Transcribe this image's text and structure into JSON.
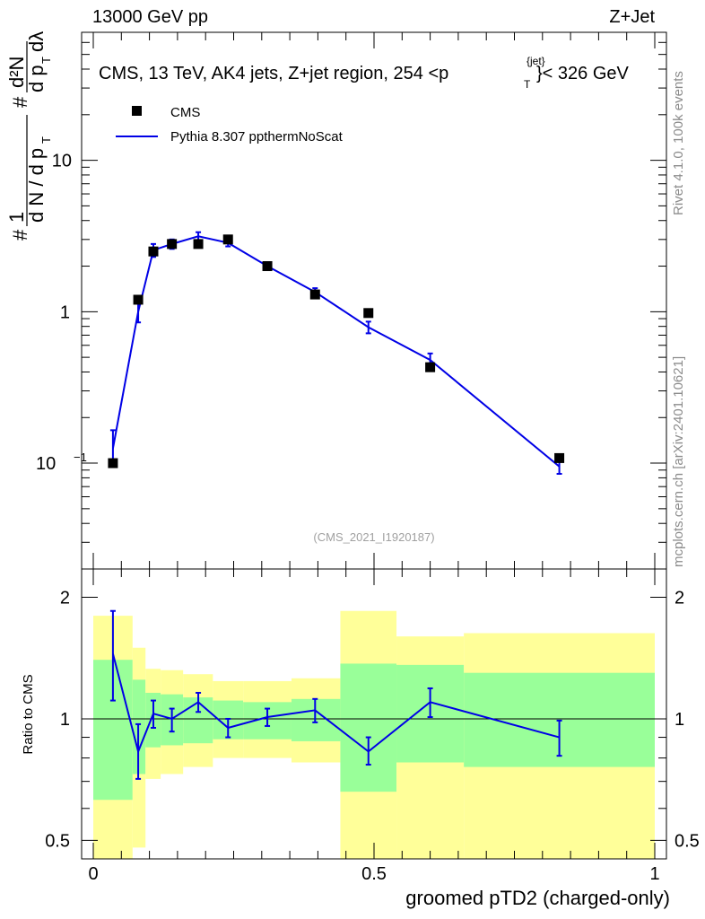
{
  "header": {
    "left": "13000 GeV pp",
    "right": "Z+Jet"
  },
  "side_text": {
    "rivet": "Rivet 4.1.0,  100k events",
    "mcplots": "mcplots.cern.ch [arXiv:2401.10621]"
  },
  "plot_title": "CMS, 13 TeV, AK4 jets, Z+jet region, 254 <p",
  "plot_title_sup": "{jet}",
  "plot_title_sub": "T",
  "plot_title_end": "}< 326 GeV",
  "reference": "(CMS_2021_I1920187)",
  "y_axis_main": "# 1/dN/dp_T # d²N/dp_T dλ",
  "y_axis_ratio": "Ratio to CMS",
  "x_axis": "groomed pTD2 (charged-only)",
  "colors": {
    "mc": "#0000e6",
    "band_inner": "#99ff99",
    "band_outer": "#ffff99"
  },
  "chart_data": {
    "type": "line",
    "xlim": [
      0,
      1
    ],
    "main": {
      "scale": "log",
      "ylim": [
        0.02,
        70
      ],
      "yticks": [
        {
          "value": 0.1,
          "label": "10",
          "exp": "−1"
        },
        {
          "value": 1,
          "label": "1",
          "exp": ""
        },
        {
          "value": 10,
          "label": "10",
          "exp": ""
        }
      ],
      "series": [
        {
          "name": "CMS",
          "style": "markers",
          "points": [
            {
              "x": 0.035,
              "y": 0.1
            },
            {
              "x": 0.08,
              "y": 1.2
            },
            {
              "x": 0.107,
              "y": 2.5
            },
            {
              "x": 0.14,
              "y": 2.8
            },
            {
              "x": 0.187,
              "y": 2.8
            },
            {
              "x": 0.24,
              "y": 3.0
            },
            {
              "x": 0.31,
              "y": 2.0
            },
            {
              "x": 0.395,
              "y": 1.3
            },
            {
              "x": 0.49,
              "y": 0.98
            },
            {
              "x": 0.6,
              "y": 0.43
            },
            {
              "x": 0.83,
              "y": 0.108
            }
          ]
        },
        {
          "name": "Pythia 8.307 ppthermNoScat",
          "style": "line",
          "points": [
            {
              "x": 0.035,
              "y": 0.125,
              "lo": 0.1,
              "hi": 0.165
            },
            {
              "x": 0.08,
              "y": 1.0,
              "lo": 0.85,
              "hi": 1.2
            },
            {
              "x": 0.107,
              "y": 2.55,
              "lo": 2.3,
              "hi": 2.8
            },
            {
              "x": 0.14,
              "y": 2.8,
              "lo": 2.6,
              "hi": 3.0
            },
            {
              "x": 0.187,
              "y": 3.15,
              "lo": 2.95,
              "hi": 3.35
            },
            {
              "x": 0.24,
              "y": 2.85,
              "lo": 2.7,
              "hi": 3.0
            },
            {
              "x": 0.31,
              "y": 2.0,
              "lo": 1.92,
              "hi": 2.08
            },
            {
              "x": 0.395,
              "y": 1.35,
              "lo": 1.27,
              "hi": 1.43
            },
            {
              "x": 0.49,
              "y": 0.79,
              "lo": 0.72,
              "hi": 0.86
            },
            {
              "x": 0.6,
              "y": 0.48,
              "lo": 0.44,
              "hi": 0.53
            },
            {
              "x": 0.83,
              "y": 0.095,
              "lo": 0.085,
              "hi": 0.105
            }
          ]
        }
      ]
    },
    "ratio": {
      "scale": "log",
      "ylim": [
        0.45,
        2.35
      ],
      "yticks": [
        {
          "value": 0.5,
          "label": "0.5"
        },
        {
          "value": 1,
          "label": "1"
        },
        {
          "value": 2,
          "label": "2"
        }
      ],
      "xticks": [
        {
          "value": 0,
          "label": "0"
        },
        {
          "value": 0.5,
          "label": "0.5"
        },
        {
          "value": 1,
          "label": "1"
        }
      ],
      "bands": [
        {
          "x0": 0.0,
          "x1": 0.07,
          "inner": [
            0.63,
            1.4
          ],
          "outer": [
            0.4,
            1.8
          ]
        },
        {
          "x0": 0.07,
          "x1": 0.093,
          "inner": [
            0.73,
            1.25
          ],
          "outer": [
            0.48,
            1.5
          ]
        },
        {
          "x0": 0.093,
          "x1": 0.12,
          "inner": [
            0.85,
            1.16
          ],
          "outer": [
            0.71,
            1.33
          ]
        },
        {
          "x0": 0.12,
          "x1": 0.16,
          "inner": [
            0.86,
            1.15
          ],
          "outer": [
            0.73,
            1.32
          ]
        },
        {
          "x0": 0.16,
          "x1": 0.213,
          "inner": [
            0.87,
            1.13
          ],
          "outer": [
            0.76,
            1.29
          ]
        },
        {
          "x0": 0.213,
          "x1": 0.267,
          "inner": [
            0.89,
            1.11
          ],
          "outer": [
            0.8,
            1.24
          ]
        },
        {
          "x0": 0.267,
          "x1": 0.353,
          "inner": [
            0.89,
            1.1
          ],
          "outer": [
            0.8,
            1.24
          ]
        },
        {
          "x0": 0.353,
          "x1": 0.44,
          "inner": [
            0.88,
            1.12
          ],
          "outer": [
            0.78,
            1.26
          ]
        },
        {
          "x0": 0.44,
          "x1": 0.54,
          "inner": [
            0.66,
            1.37
          ],
          "outer": [
            0.41,
            1.85
          ]
        },
        {
          "x0": 0.54,
          "x1": 0.66,
          "inner": [
            0.78,
            1.36
          ],
          "outer": [
            0.41,
            1.6
          ]
        },
        {
          "x0": 0.66,
          "x1": 1.0,
          "inner": [
            0.76,
            1.3
          ],
          "outer": [
            0.42,
            1.63
          ]
        }
      ],
      "points": [
        {
          "x": 0.035,
          "y": 1.45,
          "lo": 1.11,
          "hi": 1.85
        },
        {
          "x": 0.08,
          "y": 0.83,
          "lo": 0.71,
          "hi": 0.97
        },
        {
          "x": 0.107,
          "y": 1.03,
          "lo": 0.95,
          "hi": 1.11
        },
        {
          "x": 0.14,
          "y": 1.0,
          "lo": 0.93,
          "hi": 1.06
        },
        {
          "x": 0.187,
          "y": 1.1,
          "lo": 1.04,
          "hi": 1.16
        },
        {
          "x": 0.24,
          "y": 0.95,
          "lo": 0.9,
          "hi": 1.0
        },
        {
          "x": 0.31,
          "y": 1.01,
          "lo": 0.96,
          "hi": 1.06
        },
        {
          "x": 0.395,
          "y": 1.05,
          "lo": 0.98,
          "hi": 1.12
        },
        {
          "x": 0.49,
          "y": 0.83,
          "lo": 0.77,
          "hi": 0.9
        },
        {
          "x": 0.6,
          "y": 1.1,
          "lo": 1.01,
          "hi": 1.19
        },
        {
          "x": 0.83,
          "y": 0.9,
          "lo": 0.81,
          "hi": 0.99
        }
      ]
    }
  }
}
